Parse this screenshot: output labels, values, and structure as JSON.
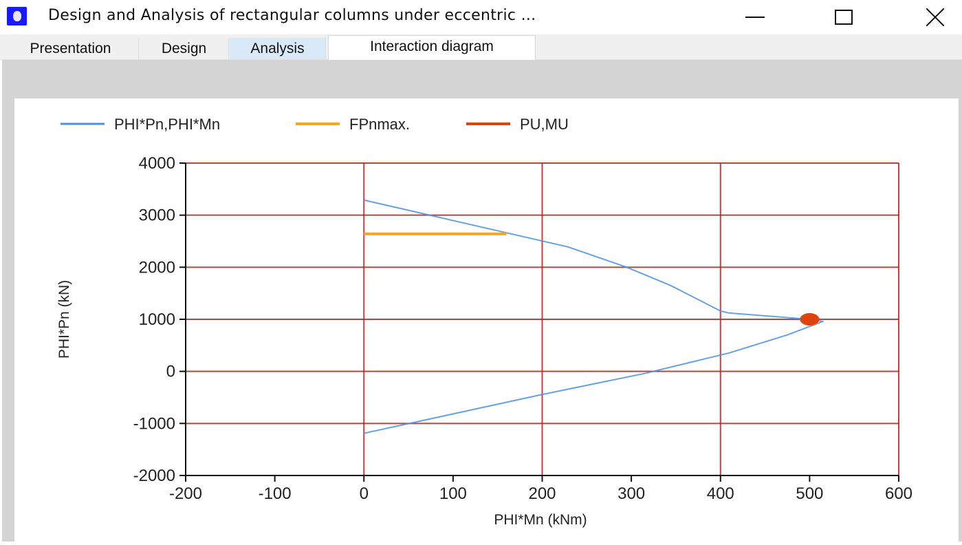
{
  "window": {
    "title": "Design and Analysis of rectangular columns under eccentric ...",
    "icon": "app-icon",
    "controls": {
      "minimize": "minimize-icon",
      "maximize": "maximize-icon",
      "close": "close-icon"
    }
  },
  "tabs": [
    {
      "label": "Presentation",
      "active": false
    },
    {
      "label": "Design",
      "active": false
    },
    {
      "label": "Analysis",
      "active": false,
      "highlighted": true
    },
    {
      "label": "Interaction diagram",
      "active": true
    }
  ],
  "legend": {
    "items": [
      {
        "label": "PHI*Pn,PHI*Mn",
        "color": "#4a90e2"
      },
      {
        "label": "FPnmax.",
        "color": "#f5a623"
      },
      {
        "label": "PU,MU",
        "color": "#e0440e"
      }
    ]
  },
  "axes": {
    "x_label": "PHI*Mn (kNm)",
    "y_label": "PHI*Pn (kN)",
    "x_ticks": [
      "-200",
      "-100",
      "0",
      "100",
      "200",
      "300",
      "400",
      "500",
      "600"
    ],
    "y_ticks": [
      "4000",
      "3000",
      "2000",
      "1000",
      "0",
      "-1000",
      "-2000"
    ]
  },
  "colors": {
    "grid": "#b22222",
    "curve": "#4a90e2",
    "fpnmax": "#f5a623",
    "point": "#e0440e"
  },
  "chart_data": {
    "type": "line",
    "title": "",
    "xlabel": "PHI*Mn (kNm)",
    "ylabel": "PHI*Pn (kN)",
    "xlim": [
      -200,
      600
    ],
    "ylim": [
      -2000,
      4000
    ],
    "x_ticks": [
      -200,
      -100,
      0,
      100,
      200,
      300,
      400,
      500,
      600
    ],
    "y_ticks": [
      -2000,
      -1000,
      0,
      1000,
      2000,
      3000,
      4000
    ],
    "grid": true,
    "grid_x_at": [
      0,
      200,
      400,
      600
    ],
    "grid_y_at": [
      -1000,
      0,
      1000,
      2000,
      3000,
      4000
    ],
    "legend_position": "top",
    "series": [
      {
        "name": "PHI*Pn,PHI*Mn",
        "type": "line",
        "color": "#4a90e2",
        "points": [
          [
            0,
            3290
          ],
          [
            229,
            2390
          ],
          [
            294,
            2005
          ],
          [
            344,
            1650
          ],
          [
            400,
            1160
          ],
          [
            410,
            1120
          ],
          [
            500,
            1000
          ],
          [
            515,
            960
          ],
          [
            475,
            700
          ],
          [
            410,
            355
          ],
          [
            315,
            -40
          ],
          [
            201,
            -440
          ],
          [
            0,
            -1190
          ]
        ]
      },
      {
        "name": "FPnmax.",
        "type": "line",
        "color": "#f5a623",
        "points": [
          [
            0,
            2640
          ],
          [
            160,
            2640
          ]
        ]
      },
      {
        "name": "PU,MU",
        "type": "scatter",
        "color": "#e0440e",
        "points": [
          [
            500,
            1000
          ]
        ]
      }
    ]
  }
}
